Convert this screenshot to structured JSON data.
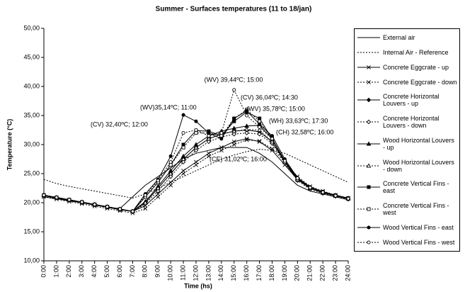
{
  "chart_data": {
    "type": "line",
    "title": "Summer - Surfaces temperatures (11 to 18/jan)",
    "xlabel": "Time (hs)",
    "ylabel": "Temperature (°C)",
    "categories": [
      "0:00",
      "1:00",
      "2:00",
      "3:00",
      "4:00",
      "5:00",
      "6:00",
      "7:00",
      "8:00",
      "9:00",
      "10:00",
      "11:00",
      "12:00",
      "13:00",
      "14:00",
      "15:00",
      "16:00",
      "17:00",
      "18:00",
      "19:00",
      "20:00",
      "21:00",
      "22:00",
      "23:00",
      "24:00"
    ],
    "ylim": [
      10,
      50
    ],
    "yticks": [
      {
        "value": 10,
        "label": "10,00"
      },
      {
        "value": 15,
        "label": "15,00"
      },
      {
        "value": 20,
        "label": "20,00"
      },
      {
        "value": 25,
        "label": "25,00"
      },
      {
        "value": 30,
        "label": "30,00"
      },
      {
        "value": 35,
        "label": "35,00"
      },
      {
        "value": 40,
        "label": "40,00"
      },
      {
        "value": 45,
        "label": "45,00"
      },
      {
        "value": 50,
        "label": "50,00"
      }
    ],
    "grid": false,
    "annotations": [
      "(WV) 39,44ºC; 15:00",
      "(CV) 36,04ºC; 14:30",
      "(WV)35,14ºC; 11:00",
      "(WV) 35,78ºC; 15:00",
      "(CV) 32,40ºC; 12:00",
      "(WH) 33,63ºC; 17:30",
      "(CH) 32,58ºC; 16:00",
      "(CE) 31,02ºC; 16:00"
    ],
    "series": [
      {
        "name": "External air",
        "color": "#000",
        "dash": false,
        "marker": "none",
        "values": [
          21,
          20.7,
          20.3,
          20,
          19.6,
          19.2,
          19,
          21,
          23,
          24.5,
          26,
          27.5,
          28.5,
          29,
          29.5,
          29.5,
          29.5,
          28.5,
          27,
          25,
          23,
          22,
          21.5,
          21,
          20.5
        ]
      },
      {
        "name": "Internal Air - Reference",
        "color": "#000",
        "dash": true,
        "marker": "none",
        "values": [
          24,
          23.3,
          22.8,
          22.4,
          22,
          21.6,
          21.2,
          20.8,
          21.5,
          22.5,
          23.5,
          24.5,
          25.5,
          26.5,
          27.5,
          28.2,
          28.8,
          29.2,
          29,
          28.5,
          27.5,
          26.5,
          25.5,
          24.5,
          23.5
        ]
      },
      {
        "name": "Concrete Eggcrate - up",
        "color": "#000",
        "dash": false,
        "marker": "x",
        "values": [
          21.2,
          20.8,
          20.4,
          20,
          19.6,
          19.2,
          18.8,
          18.5,
          19.5,
          21.5,
          23.5,
          25.5,
          27,
          28.5,
          29.5,
          30.5,
          31,
          30.5,
          29,
          26.5,
          24,
          22.5,
          21.8,
          21.2,
          20.7
        ]
      },
      {
        "name": "Concrete Eggcrate - down",
        "color": "#000",
        "dash": true,
        "marker": "x",
        "values": [
          21,
          20.6,
          20.2,
          19.8,
          19.4,
          19,
          18.6,
          18.2,
          19,
          21,
          23,
          25,
          26.5,
          28,
          29,
          30,
          30.8,
          30.6,
          29.3,
          27,
          24.5,
          22.8,
          22,
          21.3,
          20.8
        ]
      },
      {
        "name": "Concrete Horizontal Louvers - up",
        "color": "#000",
        "dash": false,
        "marker": "diamond",
        "values": [
          21.3,
          20.9,
          20.5,
          20.1,
          19.7,
          19.3,
          18.9,
          18.5,
          20,
          22.5,
          25,
          27.5,
          29.5,
          31,
          31.8,
          32.3,
          32.5,
          32.2,
          30.5,
          27,
          24,
          22.5,
          21.7,
          21.2,
          20.7
        ]
      },
      {
        "name": "Concrete Horizontal Louvers - down",
        "color": "#000",
        "dash": true,
        "marker": "diamond",
        "values": [
          21.3,
          20.9,
          20.5,
          20.1,
          19.7,
          19.3,
          18.9,
          18.5,
          19.8,
          22,
          24.5,
          27,
          29,
          30.5,
          31.3,
          31.8,
          32,
          31.8,
          30.2,
          26.8,
          23.8,
          22.3,
          21.6,
          21.1,
          20.6
        ]
      },
      {
        "name": "Wood Horizontal Louvers - up",
        "color": "#000",
        "dash": false,
        "marker": "triangle",
        "values": [
          21.3,
          20.9,
          20.5,
          20.1,
          19.7,
          19.3,
          18.9,
          18.5,
          20.2,
          22.8,
          25.5,
          28,
          30,
          31.5,
          32.3,
          32.8,
          33.2,
          33.3,
          31,
          27.2,
          24.2,
          22.6,
          21.8,
          21.3,
          20.8
        ]
      },
      {
        "name": "Wood Horizontal Louvers - down",
        "color": "#000",
        "dash": true,
        "marker": "triangle",
        "values": [
          21.3,
          20.9,
          20.5,
          20.1,
          19.7,
          19.3,
          18.9,
          18.5,
          20,
          22.5,
          25,
          27.5,
          29.5,
          31,
          31.8,
          32.3,
          32.6,
          32.5,
          30.5,
          27,
          24,
          22.5,
          21.7,
          21.2,
          20.7
        ]
      },
      {
        "name": "Concrete Vertical Fins - east",
        "color": "#000",
        "dash": false,
        "marker": "square",
        "values": [
          21.3,
          20.9,
          20.5,
          20.1,
          19.7,
          19.3,
          18.9,
          18.5,
          21,
          23.5,
          26.5,
          30,
          32.4,
          32.3,
          31.5,
          34,
          35.6,
          34.5,
          31,
          27,
          24,
          22.5,
          21.8,
          21.2,
          20.7
        ]
      },
      {
        "name": "Concrete Vertical Fins - west",
        "color": "#000",
        "dash": true,
        "marker": "square",
        "values": [
          21.3,
          20.9,
          20.5,
          20.1,
          19.7,
          19.3,
          18.9,
          18.5,
          21,
          23.5,
          26.5,
          29.5,
          32,
          32,
          31.5,
          34.5,
          36,
          34,
          31,
          27,
          24,
          22.5,
          21.8,
          21.2,
          20.7
        ]
      },
      {
        "name": "Wood Vertical Fins - east",
        "color": "#000",
        "dash": false,
        "marker": "circle",
        "values": [
          21.3,
          20.9,
          20.5,
          20.1,
          19.7,
          19.3,
          18.9,
          18.5,
          21.5,
          24,
          28,
          35.1,
          34,
          32,
          31,
          34.5,
          35.8,
          33.5,
          31.5,
          27.5,
          24.3,
          22.7,
          21.9,
          21.3,
          20.8
        ]
      },
      {
        "name": "Wood Vertical Fins - west",
        "color": "#000",
        "dash": true,
        "marker": "circle",
        "values": [
          21.3,
          20.9,
          20.5,
          20.1,
          19.7,
          19.3,
          18.9,
          18.5,
          21.3,
          23.8,
          27,
          32,
          32.5,
          31.5,
          32,
          39.4,
          35,
          33,
          31,
          27.2,
          24.2,
          22.6,
          21.8,
          21.2,
          20.7
        ]
      }
    ]
  }
}
